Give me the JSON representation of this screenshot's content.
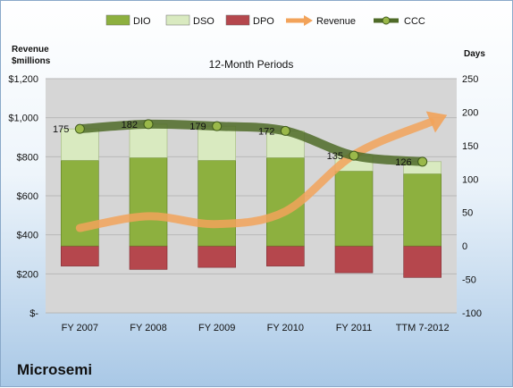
{
  "chart_data": {
    "type": "bar",
    "title": "12-Month Periods",
    "company": "Microsemi",
    "y_left_label": [
      "Revenue",
      "$millions"
    ],
    "y_right_label": "Days",
    "categories": [
      "FY 2007",
      "FY 2008",
      "FY 2009",
      "FY 2010",
      "FY 2011",
      "TTM 7-2012"
    ],
    "y_left": {
      "ticks": [
        "$-",
        "$200",
        "$400",
        "$600",
        "$800",
        "$1,000",
        "$1,200"
      ],
      "ylim": [
        0,
        1200
      ]
    },
    "y_right": {
      "ticks": [
        "-100",
        "-50",
        "0",
        "50",
        "100",
        "150",
        "200",
        "250"
      ],
      "ylim": [
        -100,
        250
      ]
    },
    "series": [
      {
        "name": "DIO",
        "axis": "right",
        "values": [
          128,
          132,
          128,
          132,
          112,
          108
        ],
        "color": "#8db03f"
      },
      {
        "name": "DSO",
        "axis": "right",
        "values": [
          47,
          50,
          51,
          40,
          23,
          18
        ],
        "color": "#d9eac0"
      },
      {
        "name": "DPO",
        "axis": "right",
        "values": [
          -30,
          -35,
          -32,
          -30,
          -40,
          -47
        ],
        "color": "#b5474d"
      },
      {
        "name": "Revenue",
        "axis": "left",
        "values": [
          435,
          495,
          455,
          520,
          810,
          960
        ],
        "color": "#f2a35a"
      },
      {
        "name": "CCC",
        "axis": "right",
        "values": [
          175,
          182,
          179,
          172,
          135,
          126
        ],
        "color": "#4f6b28"
      }
    ]
  }
}
